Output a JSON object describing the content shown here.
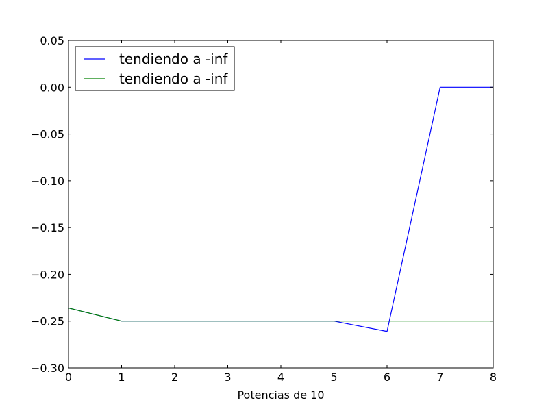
{
  "chart_data": {
    "type": "line",
    "title": "",
    "xlabel": "Potencias de 10",
    "ylabel": "",
    "xlim": [
      0,
      8
    ],
    "ylim": [
      -0.3,
      0.05
    ],
    "x_ticks": [
      0,
      1,
      2,
      3,
      4,
      5,
      6,
      7,
      8
    ],
    "x_tick_labels": [
      "0",
      "1",
      "2",
      "3",
      "4",
      "5",
      "6",
      "7",
      "8"
    ],
    "y_ticks": [
      0.05,
      0.0,
      -0.05,
      -0.1,
      -0.15,
      -0.2,
      -0.25,
      -0.3
    ],
    "y_tick_labels": [
      "0.05",
      "0.00",
      "−0.05",
      "−0.10",
      "−0.15",
      "−0.20",
      "−0.25",
      "−0.30"
    ],
    "grid": false,
    "legend_position": "top-left",
    "series": [
      {
        "name": "tendiendo a -inf",
        "color": "#0000ff",
        "x": [
          0,
          1,
          2,
          3,
          4,
          5,
          6,
          7,
          8
        ],
        "y": [
          -0.236,
          -0.25,
          -0.25,
          -0.25,
          -0.25,
          -0.25,
          -0.261,
          0.0,
          0.0
        ]
      },
      {
        "name": "tendiendo a -inf",
        "color": "#008000",
        "x": [
          0,
          1,
          2,
          3,
          4,
          5,
          6,
          7,
          8
        ],
        "y": [
          -0.236,
          -0.25,
          -0.25,
          -0.25,
          -0.25,
          -0.25,
          -0.25,
          -0.25,
          -0.25
        ]
      }
    ]
  }
}
